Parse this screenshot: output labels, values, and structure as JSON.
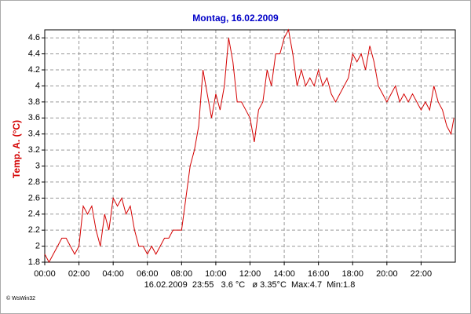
{
  "chart_data": {
    "type": "line",
    "title": "Montag, 16.02.2009",
    "y_label": "Temp. A. (°C)",
    "footer": "16.02.2009  23:55   3.6 °C   ø 3.35°C  Max:4.7  Min:1.8",
    "credit": "© WsWin32",
    "x": [
      0,
      0.25,
      0.5,
      0.75,
      1,
      1.25,
      1.5,
      1.75,
      2,
      2.25,
      2.5,
      2.75,
      3,
      3.25,
      3.5,
      3.75,
      4,
      4.25,
      4.5,
      4.75,
      5,
      5.25,
      5.5,
      5.75,
      6,
      6.25,
      6.5,
      6.75,
      7,
      7.25,
      7.5,
      7.75,
      8,
      8.25,
      8.5,
      8.75,
      9,
      9.25,
      9.5,
      9.75,
      10,
      10.25,
      10.5,
      10.75,
      11,
      11.25,
      11.5,
      11.75,
      12,
      12.25,
      12.5,
      12.75,
      13,
      13.25,
      13.5,
      13.75,
      14,
      14.25,
      14.5,
      14.75,
      15,
      15.25,
      15.5,
      15.75,
      16,
      16.25,
      16.5,
      16.75,
      17,
      17.25,
      17.5,
      17.75,
      18,
      18.25,
      18.5,
      18.75,
      19,
      19.25,
      19.5,
      19.75,
      20,
      20.25,
      20.5,
      20.75,
      21,
      21.25,
      21.5,
      21.75,
      22,
      22.25,
      22.5,
      22.75,
      23,
      23.25,
      23.5,
      23.75,
      23.92
    ],
    "series": [
      {
        "name": "Temp. A.",
        "color": "#d40000",
        "values": [
          1.9,
          1.8,
          1.9,
          2.0,
          2.1,
          2.1,
          2.0,
          1.9,
          2.0,
          2.5,
          2.4,
          2.5,
          2.2,
          2.0,
          2.4,
          2.2,
          2.6,
          2.5,
          2.6,
          2.4,
          2.5,
          2.2,
          2.0,
          2.0,
          1.9,
          2.0,
          1.9,
          2.0,
          2.1,
          2.1,
          2.2,
          2.2,
          2.2,
          2.6,
          3.0,
          3.2,
          3.5,
          4.2,
          3.9,
          3.6,
          3.9,
          3.7,
          4.0,
          4.6,
          4.3,
          3.8,
          3.8,
          3.7,
          3.6,
          3.3,
          3.7,
          3.8,
          4.2,
          4.0,
          4.4,
          4.4,
          4.6,
          4.7,
          4.4,
          4.0,
          4.2,
          4.0,
          4.1,
          4.0,
          4.2,
          4.0,
          4.1,
          3.9,
          3.8,
          3.9,
          4.0,
          4.1,
          4.4,
          4.3,
          4.4,
          4.2,
          4.5,
          4.3,
          4.0,
          3.9,
          3.8,
          3.9,
          4.0,
          3.8,
          3.9,
          3.8,
          3.9,
          3.8,
          3.7,
          3.8,
          3.7,
          4.0,
          3.8,
          3.7,
          3.5,
          3.4,
          3.6
        ]
      }
    ],
    "xlim": [
      0,
      24
    ],
    "ylim": [
      1.8,
      4.7
    ],
    "xticks": [
      {
        "value": 0,
        "label": "00:00"
      },
      {
        "value": 2,
        "label": "02:00"
      },
      {
        "value": 4,
        "label": "04:00"
      },
      {
        "value": 6,
        "label": "06:00"
      },
      {
        "value": 8,
        "label": "08:00"
      },
      {
        "value": 10,
        "label": "10:00"
      },
      {
        "value": 12,
        "label": "12:00"
      },
      {
        "value": 14,
        "label": "14:00"
      },
      {
        "value": 16,
        "label": "16:00"
      },
      {
        "value": 18,
        "label": "18:00"
      },
      {
        "value": 20,
        "label": "20:00"
      },
      {
        "value": 22,
        "label": "22:00"
      }
    ],
    "yticks": [
      1.8,
      2,
      2.2,
      2.4,
      2.6,
      2.8,
      3,
      3.2,
      3.4,
      3.6,
      3.8,
      4,
      4.2,
      4.4,
      4.6
    ],
    "grid": true
  }
}
